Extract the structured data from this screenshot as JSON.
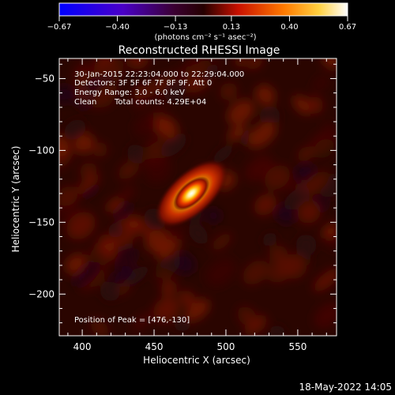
{
  "chart_data": {
    "type": "heatmap",
    "title": "Reconstructed RHESSI Image",
    "xlabel": "Heliocentric X (arcsec)",
    "ylabel": "Heliocentric Y (arcsec)",
    "xlim": [
      384,
      577
    ],
    "ylim": [
      -229,
      -36
    ],
    "x_ticks": [
      400,
      450,
      500,
      550
    ],
    "y_ticks": [
      -50,
      -100,
      -150,
      -200
    ],
    "x_tick_labels": [
      "400",
      "450",
      "500",
      "550"
    ],
    "y_tick_labels": [
      "−50",
      "−100",
      "−150",
      "−200"
    ],
    "colorbar": {
      "range": [
        -0.67,
        0.67
      ],
      "ticks": [
        -0.67,
        -0.4,
        -0.13,
        0.13,
        0.4,
        0.67
      ],
      "tick_labels": [
        "−0.67",
        "−0.40",
        "−0.13",
        "0.13",
        "0.40",
        "0.67"
      ],
      "unit_label": "(photons cm⁻² s⁻¹ asec⁻²)"
    },
    "annotations": [
      "30-Jan-2015 22:23:04.000 to 22:29:04.000",
      "Detectors: 3F 5F 6F 7F 8F 9F, Att 0",
      "Energy Range: 3.0 - 6.0 keV",
      "Clean",
      "Total counts: 4.29E+04"
    ],
    "peak_label": "Position of Peak = [476,-130]",
    "peak": {
      "x": 476,
      "y": -130,
      "value": 0.67
    }
  },
  "footer": {
    "timestamp": "18-May-2022 14:05"
  }
}
